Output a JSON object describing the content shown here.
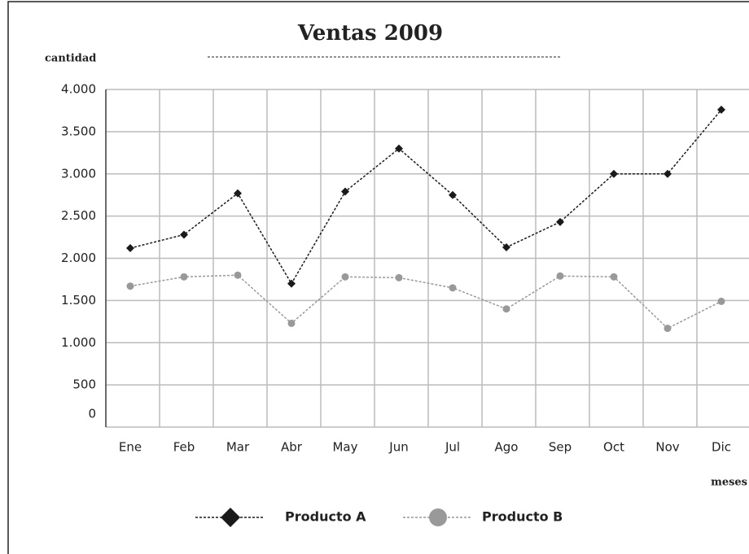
{
  "chart_data": {
    "type": "line",
    "title": "Ventas 2009",
    "y_label": "cantidad",
    "x_label": "meses",
    "categories": [
      "Ene",
      "Feb",
      "Mar",
      "Abr",
      "May",
      "Jun",
      "Jul",
      "Ago",
      "Sep",
      "Oct",
      "Nov",
      "Dic"
    ],
    "series": [
      {
        "name": "Producto A",
        "color": "#1a1a1a",
        "marker": "diamond",
        "values": [
          2120,
          2280,
          2770,
          1700,
          2790,
          3300,
          2750,
          2130,
          2430,
          3000,
          3000,
          3760
        ]
      },
      {
        "name": "Producto B",
        "color": "#999999",
        "marker": "circle",
        "values": [
          1670,
          1780,
          1800,
          1230,
          1780,
          1770,
          1650,
          1400,
          1790,
          1780,
          1170,
          1490
        ]
      }
    ],
    "ylim": [
      0,
      4000
    ],
    "yticks": [
      0,
      500,
      {
        "value": 1000,
        "label": "1.000"
      },
      {
        "value": 1500,
        "label": "1.500"
      },
      {
        "value": 2000,
        "label": "2.000"
      },
      {
        "value": 2500,
        "label": "2.500"
      },
      {
        "value": 3000,
        "label": "3.000"
      },
      {
        "value": 3500,
        "label": "3.500"
      },
      {
        "value": 4000,
        "label": "4.000"
      }
    ],
    "grid": true
  }
}
